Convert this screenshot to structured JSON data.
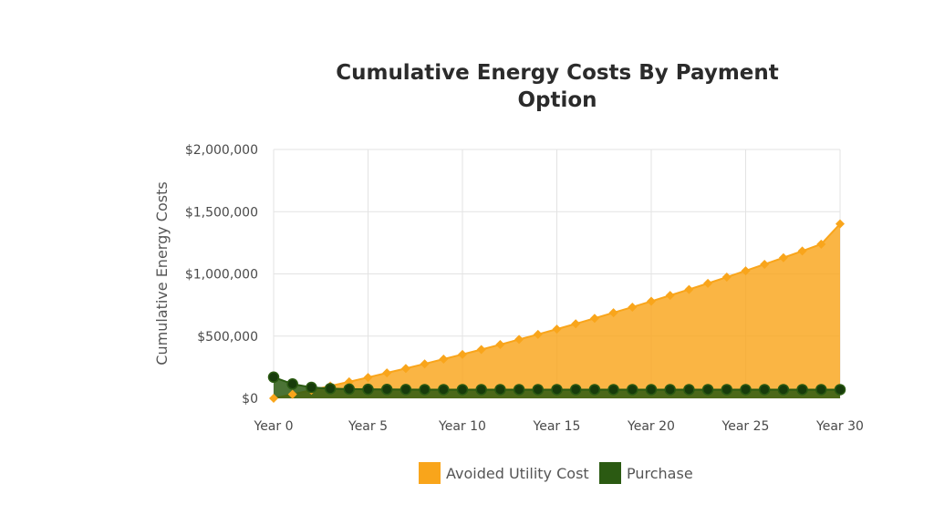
{
  "chart_data": {
    "type": "area",
    "title_lines": [
      "Cumulative Energy Costs By Payment",
      "Option"
    ],
    "ylabel": "Cumulative Energy Costs",
    "xlabel": "",
    "x_range": [
      0,
      30
    ],
    "ylim": [
      0,
      2000000
    ],
    "y_ticks": [
      {
        "value": 0,
        "label": "$0"
      },
      {
        "value": 500000,
        "label": "$500,000"
      },
      {
        "value": 1000000,
        "label": "$1,000,000"
      },
      {
        "value": 1500000,
        "label": "$1,500,000"
      },
      {
        "value": 2000000,
        "label": "$2,000,000"
      }
    ],
    "x_ticks": [
      {
        "value": 0,
        "label": "Year 0"
      },
      {
        "value": 5,
        "label": "Year 5"
      },
      {
        "value": 10,
        "label": "Year 10"
      },
      {
        "value": 15,
        "label": "Year 15"
      },
      {
        "value": 20,
        "label": "Year 20"
      },
      {
        "value": 25,
        "label": "Year 25"
      },
      {
        "value": 30,
        "label": "Year 30"
      }
    ],
    "grid": true,
    "legend_position": "bottom-center",
    "series": [
      {
        "name": "Avoided Utility Cost",
        "color": "#f9a51b",
        "marker": "diamond",
        "x": [
          0,
          1,
          2,
          3,
          4,
          5,
          6,
          7,
          8,
          9,
          10,
          11,
          12,
          13,
          14,
          15,
          16,
          17,
          18,
          19,
          20,
          21,
          22,
          23,
          24,
          25,
          26,
          27,
          28,
          29,
          30
        ],
        "values": [
          0,
          32000,
          65000,
          99000,
          133000,
          168000,
          204000,
          240000,
          277000,
          315000,
          353000,
          392000,
          432000,
          473000,
          514000,
          556000,
          599000,
          643000,
          688000,
          733000,
          780000,
          827000,
          875000,
          924000,
          974000,
          1025000,
          1077000,
          1130000,
          1184000,
          1239000,
          1402000
        ]
      },
      {
        "name": "Purchase",
        "color": "#2b5a12",
        "marker": "circle",
        "x": [
          0,
          1,
          2,
          3,
          4,
          5,
          6,
          7,
          8,
          9,
          10,
          11,
          12,
          13,
          14,
          15,
          16,
          17,
          18,
          19,
          20,
          21,
          22,
          23,
          24,
          25,
          26,
          27,
          28,
          29,
          30
        ],
        "values": [
          170000,
          115000,
          88000,
          78000,
          74000,
          72000,
          71000,
          70500,
          70000,
          70000,
          70000,
          70000,
          70000,
          70000,
          70000,
          70000,
          70000,
          70000,
          70000,
          70000,
          70000,
          70000,
          70000,
          70000,
          70000,
          70000,
          70000,
          70000,
          70000,
          70000,
          70000
        ]
      }
    ]
  }
}
